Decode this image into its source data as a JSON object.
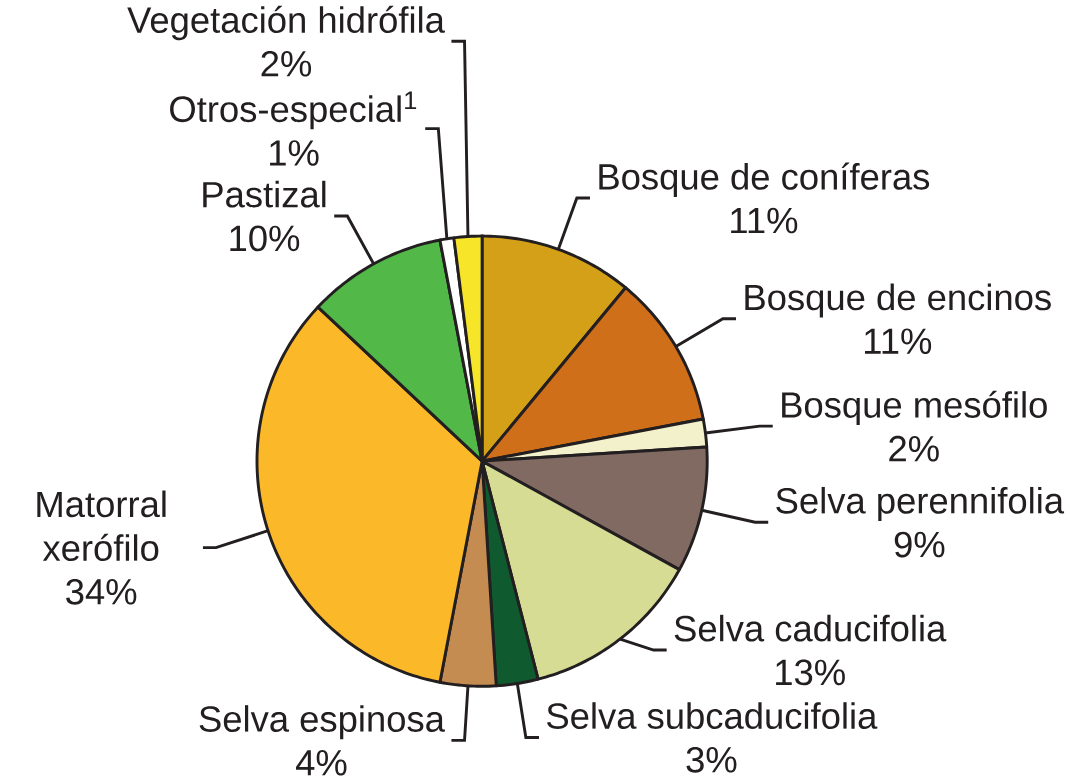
{
  "chart_data": {
    "type": "pie",
    "categories": [
      "Bosque de coníferas",
      "Bosque de encinos",
      "Bosque mesófilo",
      "Selva perennifolia",
      "Selva caducifolia",
      "Selva subcaducifolia",
      "Selva espinosa",
      "Matorral xerófilo",
      "Pastizal",
      "Otros-especial$^{1}$",
      "Vegetación hidrófila"
    ],
    "values": [
      11,
      11,
      2,
      9,
      13,
      3,
      4,
      34,
      10,
      1,
      2
    ],
    "value_labels": [
      "11%",
      "11%",
      "2%",
      "9%",
      "13%",
      "3%",
      "4%",
      "34%",
      "10%",
      "1%",
      "2%"
    ],
    "colors": [
      "#d4a017",
      "#d06f1a",
      "#f3f0cc",
      "#806a62",
      "#d6dc94",
      "#0f5a2e",
      "#c58c52",
      "#fbb829",
      "#52b848",
      "#ffffff",
      "#f7e52a"
    ]
  }
}
